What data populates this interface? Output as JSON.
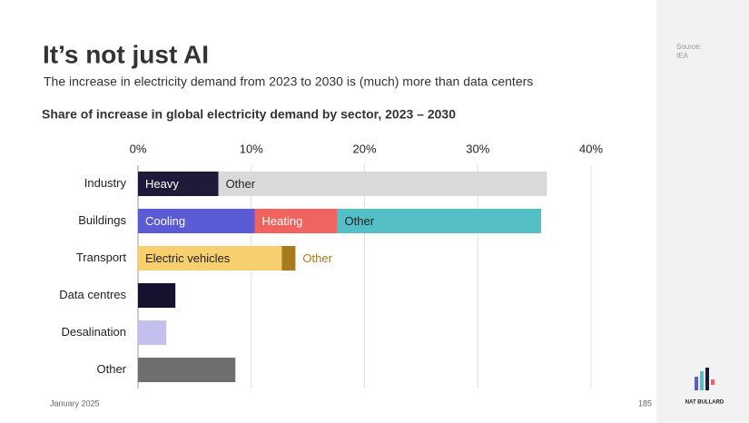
{
  "title": "It’s not just AI",
  "subtitle": "The increase in electricity demand from 2023 to 2030 is (much) more than data centers",
  "source": {
    "label": "Source:",
    "value": "IEA"
  },
  "footer": {
    "date": "January 2025",
    "page": "185",
    "brand": "NAT BULLARD"
  },
  "chart_data": {
    "type": "stacked-bar-horizontal",
    "title": "Share of increase in global electricity demand by sector, 2023 – 2030",
    "xlim": [
      0,
      40
    ],
    "xticks": [
      {
        "value": 0,
        "label": "0%"
      },
      {
        "value": 10,
        "label": "10%"
      },
      {
        "value": 20,
        "label": "20%"
      },
      {
        "value": 30,
        "label": "30%"
      },
      {
        "value": 40,
        "label": "40%"
      }
    ],
    "grid": true,
    "rows": [
      {
        "category": "Industry",
        "segments": [
          {
            "name": "Heavy",
            "value": 7.1,
            "color": "#1e1a3a"
          },
          {
            "name": "Other",
            "value": 29.0,
            "color": "#d9d9d9"
          }
        ]
      },
      {
        "category": "Buildings",
        "segments": [
          {
            "name": "Cooling",
            "value": 10.3,
            "color": "#5b5bd6"
          },
          {
            "name": "Heating",
            "value": 7.3,
            "color": "#f0645f"
          },
          {
            "name": "Other",
            "value": 18.0,
            "color": "#55bfc8"
          }
        ]
      },
      {
        "category": "Transport",
        "segments": [
          {
            "name": "Electric vehicles",
            "value": 12.7,
            "color": "#f7cf6e"
          },
          {
            "name": "Other",
            "value": 1.2,
            "color": "#a87a1e"
          }
        ]
      },
      {
        "category": "Data centres",
        "segments": [
          {
            "value": 3.3,
            "color": "#16112e"
          }
        ]
      },
      {
        "category": "Desalination",
        "segments": [
          {
            "value": 2.5,
            "color": "#c4c0ee"
          }
        ]
      },
      {
        "category": "Other",
        "segments": [
          {
            "value": 8.6,
            "color": "#6e6e6e"
          }
        ]
      }
    ]
  }
}
